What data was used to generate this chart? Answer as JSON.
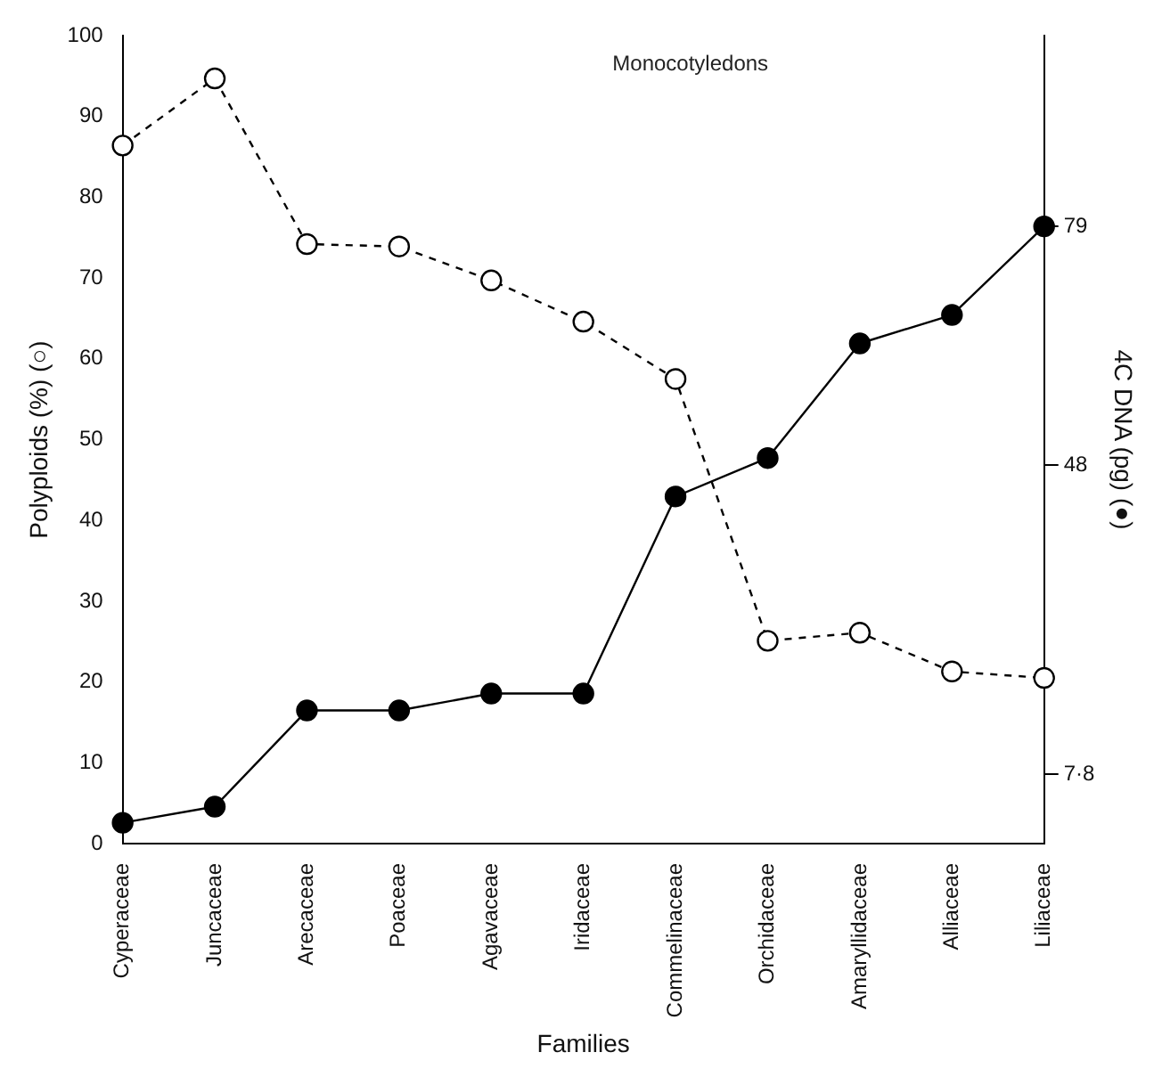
{
  "chart_data": {
    "type": "line",
    "title": "Monocotyledons",
    "xlabel": "Families",
    "ylabel": "Polyploids (%) (○)",
    "y2label": "4C DNA (pg) (●)",
    "categories": [
      "Cyperaceae",
      "Juncaceae",
      "Arecaceae",
      "Poaceae",
      "Agavaceae",
      "Iridaceae",
      "Commelinaceae",
      "Orchidaceae",
      "Amaryllidaceae",
      "Alliaceae",
      "Liliaceae"
    ],
    "series": [
      {
        "color": "#000000",
        "line_style": "dashed",
        "values": [
          86.4,
          94.7,
          74.2,
          73.9,
          69.7,
          64.6,
          57.5,
          25.1,
          26.1,
          21.3,
          20.5
        ]
      },
      {
        "color": "#000000",
        "line_style": "solid",
        "axis": "y2",
        "values": [
          1.5,
          3.6,
          16.1,
          16.1,
          18.3,
          18.3,
          43.9,
          48.9,
          63.8,
          67.5,
          79
        ]
      }
    ],
    "ylim": [
      0,
      100
    ],
    "yticks": [
      0,
      10,
      20,
      30,
      40,
      50,
      60,
      70,
      80,
      90,
      100
    ],
    "y2lim": [
      -1.2,
      103.8
    ],
    "y2ticks": [
      {
        "value": 7.8,
        "label": "7·8"
      },
      48,
      79
    ],
    "marker": "circle",
    "grid": false,
    "legend": false
  }
}
